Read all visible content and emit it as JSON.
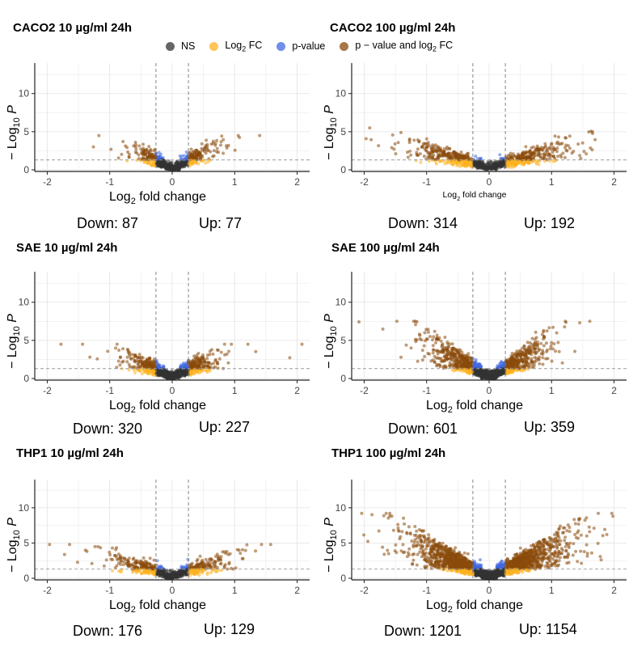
{
  "legend": [
    {
      "label": "NS",
      "color": "#333333"
    },
    {
      "label": "Log2 FC",
      "label_html": "Log<sub>2</sub> FC",
      "color": "#FFB21F"
    },
    {
      "label": "p-value",
      "color": "#4169E1"
    },
    {
      "label": "p − value and log2 FC",
      "label_html": "p − value and log<sub>2</sub> FC",
      "color": "#8B4A0B"
    }
  ],
  "chart_data": [
    {
      "type": "scatter",
      "title": "CACO2 10 µg/ml 24h",
      "xlabel": "Log2 fold change",
      "ylabel": "−Log10 P",
      "xlim": [
        -2.2,
        2.2
      ],
      "ylim": [
        0,
        14
      ],
      "x_ticks": [
        -2,
        -1,
        0,
        1,
        2
      ],
      "y_ticks": [
        0,
        5,
        10
      ],
      "fc_cutoff": 0.26,
      "p_cutoff": 1.3,
      "spread": 1.0,
      "ymax": 4.5,
      "n_points": 700,
      "down_label": "Down: 87",
      "up_label": "Up: 77"
    },
    {
      "type": "scatter",
      "title": "CACO2 100 µg/ml 24h",
      "xlabel": "Log2 fold change",
      "ylabel": "−Log10 P",
      "xlim": [
        -2.2,
        2.2
      ],
      "ylim": [
        0,
        14
      ],
      "x_ticks": [
        -2,
        -1,
        0,
        1,
        2
      ],
      "y_ticks": [
        0,
        5,
        10
      ],
      "fc_cutoff": 0.26,
      "p_cutoff": 1.3,
      "spread": 2.0,
      "ymax": 5.5,
      "n_points": 1000,
      "down_label": "Down: 314",
      "up_label": "Up: 192"
    },
    {
      "type": "scatter",
      "title": "SAE 10 µg/ml 24h",
      "xlabel": "Log2 fold change",
      "ylabel": "−Log10 P",
      "xlim": [
        -2.2,
        2.2
      ],
      "ylim": [
        0,
        14
      ],
      "x_ticks": [
        -2,
        -1,
        0,
        1,
        2
      ],
      "y_ticks": [
        0,
        5,
        10
      ],
      "fc_cutoff": 0.26,
      "p_cutoff": 1.3,
      "spread": 1.05,
      "ymax": 4.5,
      "n_points": 1100,
      "down_label": "Down: 320",
      "up_label": "Up: 227"
    },
    {
      "type": "scatter",
      "title": "SAE 100 µg/ml 24h",
      "xlabel": "Log2 fold change",
      "ylabel": "−Log10 P",
      "xlim": [
        -2.2,
        2.2
      ],
      "ylim": [
        0,
        14
      ],
      "x_ticks": [
        -2,
        -1,
        0,
        1,
        2
      ],
      "y_ticks": [
        0,
        5,
        10
      ],
      "fc_cutoff": 0.26,
      "p_cutoff": 1.3,
      "spread": 1.4,
      "ymax": 7.5,
      "n_points": 1500,
      "down_label": "Down: 601",
      "up_label": "Up: 359"
    },
    {
      "type": "scatter",
      "title": "THP1 10 µg/ml 24h",
      "xlabel": "Log2 fold change",
      "ylabel": "−Log10 P",
      "xlim": [
        -2.2,
        2.2
      ],
      "ylim": [
        0,
        14
      ],
      "x_ticks": [
        -2,
        -1,
        0,
        1,
        2
      ],
      "y_ticks": [
        0,
        5,
        10
      ],
      "fc_cutoff": 0.26,
      "p_cutoff": 1.3,
      "spread": 1.5,
      "ymax": 4.8,
      "n_points": 800,
      "down_label": "Down: 176",
      "up_label": "Up: 129"
    },
    {
      "type": "scatter",
      "title": "THP1 100 µg/ml 24h",
      "xlabel": "Log2 fold change",
      "ylabel": "−Log10 P",
      "xlim": [
        -2.2,
        2.2
      ],
      "ylim": [
        0,
        14
      ],
      "x_ticks": [
        -2,
        -1,
        0,
        1,
        2
      ],
      "y_ticks": [
        0,
        5,
        10
      ],
      "fc_cutoff": 0.26,
      "p_cutoff": 1.3,
      "spread": 1.95,
      "ymax": 9.2,
      "n_points": 2600,
      "down_label": "Down: 1201",
      "up_label": "Up: 1154"
    }
  ]
}
